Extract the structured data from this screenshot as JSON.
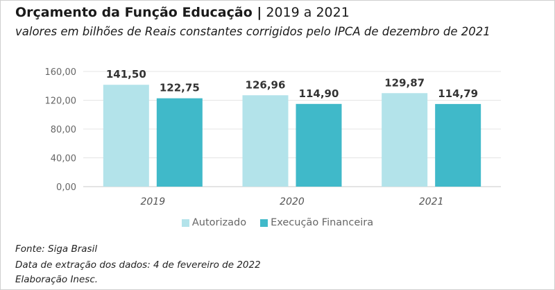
{
  "header": {
    "title_bold": "Orçamento da Função Educação |",
    "title_rest": " 2019 a 2021",
    "subtitle": "valores em bilhões de Reais constantes corrigidos pelo IPCA de dezembro de 2021"
  },
  "footer": {
    "source": "Fonte: Siga Brasil",
    "extraction": "Data de extração dos dados: 4 de fevereiro de 2022",
    "credits": "Elaboração Inesc."
  },
  "chart_data": {
    "type": "bar",
    "title": "",
    "xlabel": "",
    "ylabel": "",
    "categories": [
      "2019",
      "2020",
      "2021"
    ],
    "series": [
      {
        "name": "Autorizado",
        "values": [
          141.5,
          126.96,
          129.87
        ],
        "labels": [
          "141,50",
          "126,96",
          "129,87"
        ],
        "color": "#b3e3ea"
      },
      {
        "name": "Execução Financeira",
        "values": [
          122.75,
          114.9,
          114.79
        ],
        "labels": [
          "122,75",
          "114,90",
          "114,79"
        ],
        "color": "#40b9c9"
      }
    ],
    "ylim": [
      0,
      160
    ],
    "yticks": [
      0,
      40,
      80,
      120,
      160
    ],
    "ytick_labels": [
      "0,00",
      "40,00",
      "80,00",
      "120,00",
      "160,00"
    ],
    "grid": true,
    "legend": "bottom-center"
  }
}
